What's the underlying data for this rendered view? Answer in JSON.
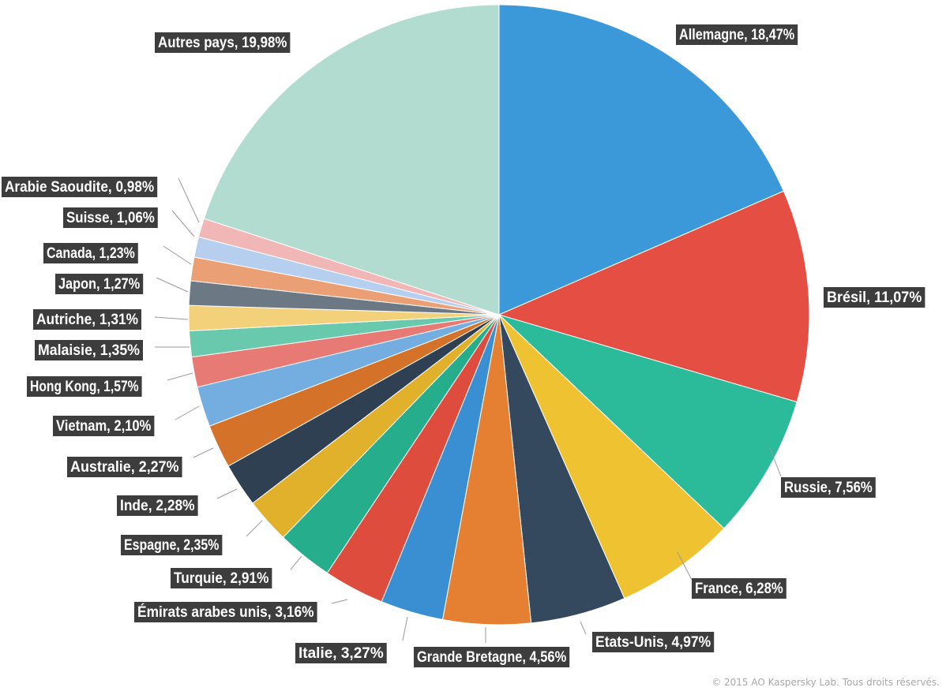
{
  "chart_data": {
    "type": "pie",
    "slices": [
      {
        "label": "Allemagne",
        "value": 18.47,
        "text": "Allemagne, 18,47%",
        "color": "#3b99d9"
      },
      {
        "label": "Brésil",
        "value": 11.07,
        "text": "Brésil, 11,07%",
        "color": "#e44e43"
      },
      {
        "label": "Russie",
        "value": 7.56,
        "text": "Russie, 7,56%",
        "color": "#2bbb9a"
      },
      {
        "label": "France",
        "value": 6.28,
        "text": "France, 6,28%",
        "color": "#efc231"
      },
      {
        "label": "Etats-Unis",
        "value": 4.97,
        "text": "Etats-Unis, 4,97%",
        "color": "#34495e"
      },
      {
        "label": "Grande Bretagne",
        "value": 4.56,
        "text": "Grande Bretagne, 4,56%",
        "color": "#e57f31"
      },
      {
        "label": "Italie",
        "value": 3.27,
        "text": "Italie, 3,27%",
        "color": "#3a8fd2"
      },
      {
        "label": "Émirats arabes unis",
        "value": 3.16,
        "text": "Émirats arabes unis, 3,16%",
        "color": "#de4c3d"
      },
      {
        "label": "Turquie",
        "value": 2.91,
        "text": "Turquie, 2,91%",
        "color": "#25ad8c"
      },
      {
        "label": "Espagne",
        "value": 2.35,
        "text": "Espagne, 2,35%",
        "color": "#e1b12c"
      },
      {
        "label": "Inde",
        "value": 2.28,
        "text": "Inde, 2,28%",
        "color": "#2f4052"
      },
      {
        "label": "Australie",
        "value": 2.27,
        "text": "Australie, 2,27%",
        "color": "#d5722a"
      },
      {
        "label": "Vietnam",
        "value": 2.1,
        "text": "Vietnam, 2,10%",
        "color": "#74addf"
      },
      {
        "label": "Hong Kong",
        "value": 1.57,
        "text": "Hong Kong, 1,57%",
        "color": "#e87a76"
      },
      {
        "label": "Malaisie",
        "value": 1.35,
        "text": "Malaisie, 1,35%",
        "color": "#68c9ad"
      },
      {
        "label": "Autriche",
        "value": 1.31,
        "text": "Autriche, 1,31%",
        "color": "#f3d17a"
      },
      {
        "label": "Japon",
        "value": 1.27,
        "text": "Japon, 1,27%",
        "color": "#6c7884"
      },
      {
        "label": "Canada",
        "value": 1.23,
        "text": "Canada, 1,23%",
        "color": "#eb9f74"
      },
      {
        "label": "Suisse",
        "value": 1.06,
        "text": "Suisse, 1,06%",
        "color": "#b6cfee"
      },
      {
        "label": "Arabie Saoudite",
        "value": 0.98,
        "text": "Arabie Saoudite, 0,98%",
        "color": "#f1b7b7"
      },
      {
        "label": "Autres pays",
        "value": 19.98,
        "text": "Autres pays, 19,98%",
        "color": "#b2dccf"
      }
    ],
    "start_angle": "12 o'clock",
    "direction": "clockwise",
    "label_style": "white bold text on dark boxes with leader lines"
  },
  "footer": {
    "copyright": "© 2015 AO Kaspersky Lab. Tous droits réservés."
  }
}
